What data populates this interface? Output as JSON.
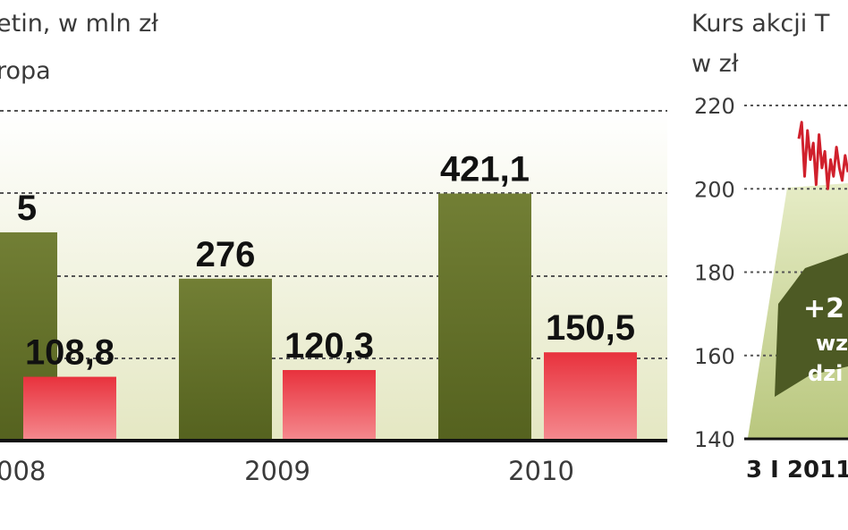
{
  "left_chart": {
    "title_line1": "etin, w mln zł",
    "title_line2": "ropa",
    "colors": {
      "series_a": "#6b7a2e",
      "series_b": "#e23a44"
    },
    "chart_data": {
      "type": "bar",
      "categories": [
        "008",
        "2009",
        "2010"
      ],
      "series": [
        {
          "values": [
            null,
            276,
            421.1
          ],
          "labels": [
            "5",
            "276",
            "421,1"
          ]
        },
        {
          "values": [
            108.8,
            120.3,
            150.5
          ],
          "labels": [
            "108,8",
            "120,3",
            "150,5"
          ]
        }
      ],
      "gridlines": true
    }
  },
  "right_chart": {
    "title_line1": "Kurs akcji T",
    "title_line2": "w zł",
    "colors": {
      "line": "#d0202c",
      "arrow": "#4d5a24",
      "area": "#c8d49a"
    },
    "arrow_text": [
      "+2",
      "wz",
      "dzi"
    ],
    "chart_data": {
      "type": "line",
      "y_ticks": [
        220,
        200,
        180,
        160,
        140
      ],
      "ylim": [
        140,
        220
      ],
      "x_label": "3 I 2011",
      "series": [
        {
          "values": [
            212,
            216,
            203,
            214,
            207,
            211,
            201,
            213,
            205,
            209,
            200,
            207,
            203,
            210,
            205,
            202,
            208,
            204
          ]
        }
      ]
    }
  }
}
